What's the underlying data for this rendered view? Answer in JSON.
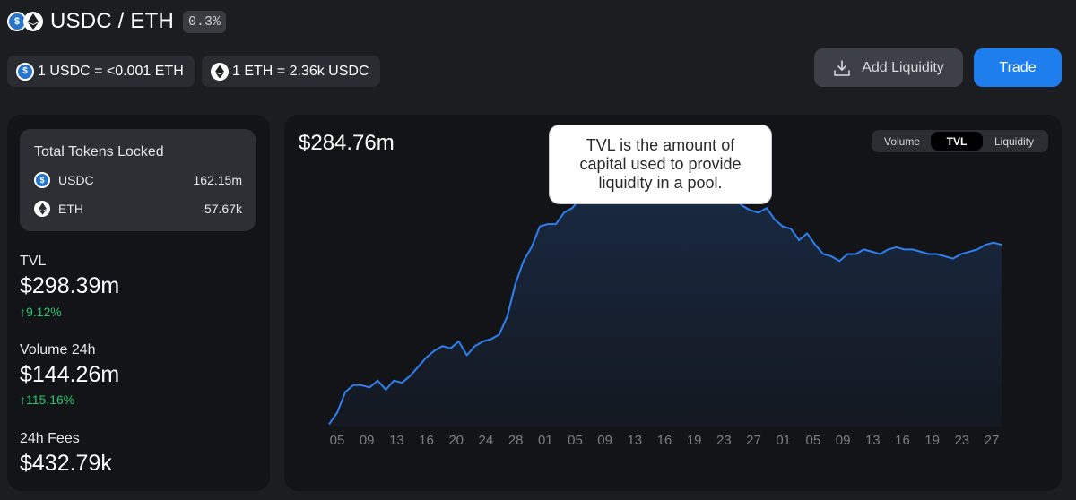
{
  "header": {
    "title": "USDC / ETH",
    "fee_tier": "0.3%",
    "usdc_glyph": "$"
  },
  "rates": {
    "usdc_to_eth": "1 USDC = <0.001 ETH",
    "eth_to_usdc": "1 ETH = 2.36k USDC"
  },
  "actions": {
    "add_liquidity": "Add Liquidity",
    "trade": "Trade"
  },
  "stats": {
    "locked_title": "Total Tokens Locked",
    "tokens": [
      {
        "symbol": "USDC",
        "amount": "162.15m",
        "glyph": "$"
      },
      {
        "symbol": "ETH",
        "amount": "57.67k"
      }
    ],
    "tvl": {
      "label": "TVL",
      "value": "$298.39m",
      "change": "↑9.12%"
    },
    "volume": {
      "label": "Volume 24h",
      "value": "$144.26m",
      "change": "↑115.16%"
    },
    "fees": {
      "label": "24h Fees",
      "value": "$432.79k"
    }
  },
  "chart": {
    "current_value": "$284.76m",
    "tooltip": "TVL is the amount of capital used to provide liquidity in a pool.",
    "toggles": [
      "Volume",
      "TVL",
      "Liquidity"
    ],
    "active_toggle": "TVL"
  },
  "colors": {
    "accent": "#1f7eee",
    "line": "#2f7ff0",
    "positive": "#2ac76b",
    "usdc": "#2775ca"
  },
  "icons": {
    "usdc": "usdc-token-icon",
    "eth": "eth-token-icon",
    "add_liquidity": "download-icon"
  },
  "chart_data": {
    "type": "area",
    "title": "",
    "xlabel": "",
    "ylabel": "",
    "x_tick_labels": [
      "05",
      "09",
      "13",
      "16",
      "20",
      "24",
      "28",
      "01",
      "05",
      "09",
      "13",
      "16",
      "19",
      "23",
      "27",
      "01",
      "05",
      "09",
      "13",
      "16",
      "19",
      "23",
      "27"
    ],
    "x_index_range": [
      0,
      82
    ],
    "ylim": [
      0,
      240
    ],
    "grid": false,
    "series": [
      {
        "values": [
          2,
          12,
          30,
          36,
          36,
          34,
          40,
          32,
          40,
          38,
          44,
          52,
          60,
          66,
          70,
          68,
          74,
          62,
          70,
          74,
          76,
          80,
          96,
          124,
          144,
          156,
          174,
          176,
          176,
          186,
          190,
          198,
          208,
          214,
          220,
          226,
          226,
          228,
          232,
          234,
          232,
          232,
          228,
          232,
          226,
          218,
          214,
          206,
          200,
          202,
          198,
          192,
          188,
          186,
          190,
          180,
          174,
          172,
          162,
          168,
          158,
          150,
          148,
          144,
          150,
          150,
          154,
          152,
          150,
          154,
          156,
          154,
          154,
          152,
          150,
          150,
          148,
          146,
          150,
          152,
          154,
          158,
          160,
          158
        ]
      }
    ]
  }
}
